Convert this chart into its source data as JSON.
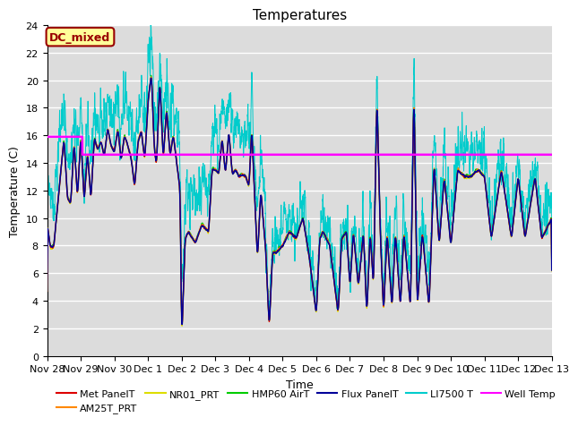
{
  "title": "Temperatures",
  "xlabel": "Time",
  "ylabel": "Temperature (C)",
  "ylim": [
    0,
    24
  ],
  "yticks": [
    0,
    2,
    4,
    6,
    8,
    10,
    12,
    14,
    16,
    18,
    20,
    22,
    24
  ],
  "x_ticks_labels": [
    "Nov 28",
    "Nov 29",
    "Nov 30",
    "Dec 1",
    "Dec 2",
    "Dec 3",
    "Dec 4",
    "Dec 5",
    "Dec 6",
    "Dec 7",
    "Dec 8",
    "Dec 9",
    "Dec 10",
    "Dec 11",
    "Dec 12",
    "Dec 13"
  ],
  "annotation_box_text": "DC_mixed",
  "annotation_box_color": "#ffff99",
  "annotation_box_edge_color": "#990000",
  "annotation_box_text_color": "#990000",
  "well_temp_step1": 15.9,
  "well_temp_step2": 14.6,
  "well_temp_step_day": 1.05,
  "series_colors": {
    "Met PanelT": "#dd0000",
    "AM25T_PRT": "#ff8800",
    "NR01_PRT": "#dddd00",
    "HMP60 AirT": "#00cc00",
    "Flux PanelT": "#000099",
    "LI7500 T": "#00cccc",
    "Well Temp": "#ff00ff"
  },
  "background_color": "#dcdcdc",
  "grid_color": "#ffffff",
  "fig_background": "#ffffff",
  "legend_ncol": 6,
  "legend_fontsize": 8
}
